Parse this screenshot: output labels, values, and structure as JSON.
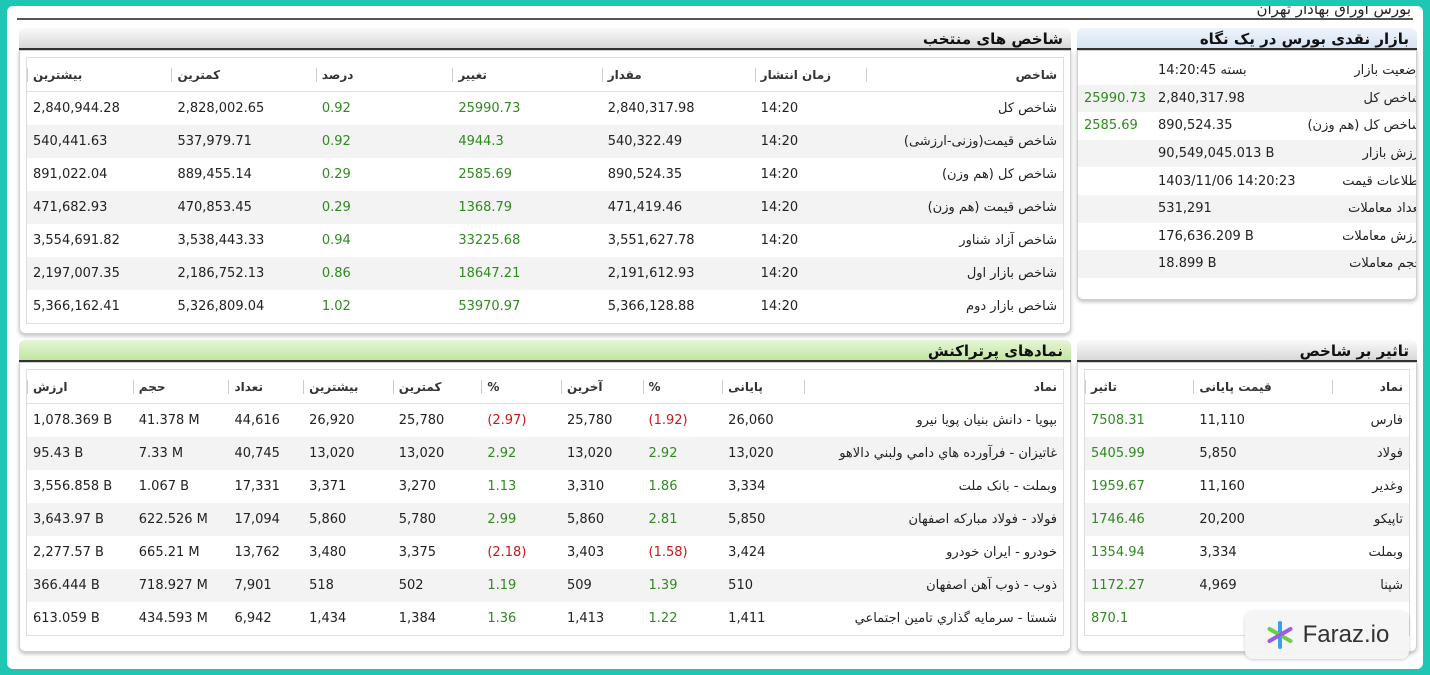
{
  "page_title": "بورس اوراق بهادار تهران",
  "indices_panel": {
    "title": "شاخص های منتخب",
    "columns": [
      "شاخص",
      "زمان انتشار",
      "مقدار",
      "تغییر",
      "درصد",
      "کمترین",
      "بیشترین"
    ],
    "rows": [
      {
        "name": "شاخص کل",
        "time": "14:20",
        "value": "2,840,317.98",
        "change": "25990.73",
        "percent": "0.92",
        "low": "2,828,002.65",
        "high": "2,840,944.28"
      },
      {
        "name": "شاخص قیمت(وزنی-ارزشی)",
        "time": "14:20",
        "value": "540,322.49",
        "change": "4944.3",
        "percent": "0.92",
        "low": "537,979.71",
        "high": "540,441.63"
      },
      {
        "name": "شاخص کل (هم وزن)",
        "time": "14:20",
        "value": "890,524.35",
        "change": "2585.69",
        "percent": "0.29",
        "low": "889,455.14",
        "high": "891,022.04"
      },
      {
        "name": "شاخص قیمت (هم وزن)",
        "time": "14:20",
        "value": "471,419.46",
        "change": "1368.79",
        "percent": "0.29",
        "low": "470,853.45",
        "high": "471,682.93"
      },
      {
        "name": "شاخص آزاد شناور",
        "time": "14:20",
        "value": "3,551,627.78",
        "change": "33225.68",
        "percent": "0.94",
        "low": "3,538,443.33",
        "high": "3,554,691.82"
      },
      {
        "name": "شاخص بازار اول",
        "time": "14:20",
        "value": "2,191,612.93",
        "change": "18647.21",
        "percent": "0.86",
        "low": "2,186,752.13",
        "high": "2,197,007.35"
      },
      {
        "name": "شاخص بازار دوم",
        "time": "14:20",
        "value": "5,366,128.88",
        "change": "53970.97",
        "percent": "1.02",
        "low": "5,326,809.04",
        "high": "5,366,162.41"
      }
    ]
  },
  "glance_panel": {
    "title": "بازار نقدی بورس در یک نگاه",
    "rows": [
      {
        "label": "وضعیت بازار",
        "value": "بسته 14:20:45",
        "extra": ""
      },
      {
        "label": "شاخص کل",
        "value": "2,840,317.98",
        "extra": "25990.73"
      },
      {
        "label": "شاخص کل (هم وزن)",
        "value": "890,524.35",
        "extra": "2585.69"
      },
      {
        "label": "ارزش بازار",
        "value": "90,549,045.013 B",
        "extra": ""
      },
      {
        "label": "اطلاعات قیمت",
        "value": "1403/11/06 14:20:23",
        "extra": ""
      },
      {
        "label": "تعداد معاملات",
        "value": "531,291",
        "extra": ""
      },
      {
        "label": "ارزش معاملات",
        "value": "176,636.209 B",
        "extra": ""
      },
      {
        "label": "حجم معاملات",
        "value": "18.899 B",
        "extra": ""
      }
    ]
  },
  "active_panel": {
    "title": "نمادهای پرتراکنش",
    "columns": [
      "نماد",
      "پایانی",
      "%",
      "آخرین",
      "%",
      "کمترین",
      "بیشترین",
      "تعداد",
      "حجم",
      "ارزش"
    ],
    "rows": [
      {
        "symbol": "بپویا - دانش بنیان پویا نیرو",
        "close": "26,060",
        "close_pct": "(1.92)",
        "last": "25,780",
        "last_pct": "(2.97)",
        "low": "25,780",
        "high": "26,920",
        "count": "44,616",
        "volume": "41.378 M",
        "value": "1,078.369 B",
        "neg": true
      },
      {
        "symbol": "غاتیزان - فرآورده هاي دامي ولبني دالاهو",
        "close": "13,020",
        "close_pct": "2.92",
        "last": "13,020",
        "last_pct": "2.92",
        "low": "13,020",
        "high": "13,020",
        "count": "40,745",
        "volume": "7.33 M",
        "value": "95.43 B",
        "neg": false
      },
      {
        "symbol": "وبملت - بانک ملت",
        "close": "3,334",
        "close_pct": "1.86",
        "last": "3,310",
        "last_pct": "1.13",
        "low": "3,270",
        "high": "3,371",
        "count": "17,331",
        "volume": "1.067 B",
        "value": "3,556.858 B",
        "neg": false
      },
      {
        "symbol": "فولاد - فولاد مبارکه اصفهان",
        "close": "5,850",
        "close_pct": "2.81",
        "last": "5,860",
        "last_pct": "2.99",
        "low": "5,780",
        "high": "5,860",
        "count": "17,094",
        "volume": "622.526 M",
        "value": "3,643.97 B",
        "neg": false
      },
      {
        "symbol": "خودرو - ایران خودرو",
        "close": "3,424",
        "close_pct": "(1.58)",
        "last": "3,403",
        "last_pct": "(2.18)",
        "low": "3,375",
        "high": "3,480",
        "count": "13,762",
        "volume": "665.21 M",
        "value": "2,277.57 B",
        "neg": true
      },
      {
        "symbol": "ذوب - ذوب آهن اصفهان",
        "close": "510",
        "close_pct": "1.39",
        "last": "509",
        "last_pct": "1.19",
        "low": "502",
        "high": "518",
        "count": "7,901",
        "volume": "718.927 M",
        "value": "366.444 B",
        "neg": false
      },
      {
        "symbol": "شستا - سرمایه گذاري تامین اجتماعي",
        "close": "1,411",
        "close_pct": "1.22",
        "last": "1,413",
        "last_pct": "1.36",
        "low": "1,384",
        "high": "1,434",
        "count": "6,942",
        "volume": "434.593 M",
        "value": "613.059 B",
        "neg": false
      }
    ]
  },
  "impact_panel": {
    "title": "تاثیر بر شاخص",
    "columns": [
      "نماد",
      "قیمت پایانی",
      "تاثیر"
    ],
    "rows": [
      {
        "symbol": "فارس",
        "price": "11,110",
        "impact": "7508.31"
      },
      {
        "symbol": "فولاد",
        "price": "5,850",
        "impact": "5405.99"
      },
      {
        "symbol": "وغدیر",
        "price": "11,160",
        "impact": "1959.67"
      },
      {
        "symbol": "تاپیکو",
        "price": "20,200",
        "impact": "1746.46"
      },
      {
        "symbol": "وبملت",
        "price": "3,334",
        "impact": "1354.94"
      },
      {
        "symbol": "شپنا",
        "price": "4,969",
        "impact": "1172.27"
      },
      {
        "symbol": "",
        "price": "",
        "impact": "870.1"
      }
    ]
  },
  "watermark": {
    "text": "Faraz.io",
    "icon": "snowflake-logo-icon"
  },
  "colors": {
    "positive": "#2f8a1f",
    "negative": "#c81919",
    "accent": "#1ec6b4"
  }
}
